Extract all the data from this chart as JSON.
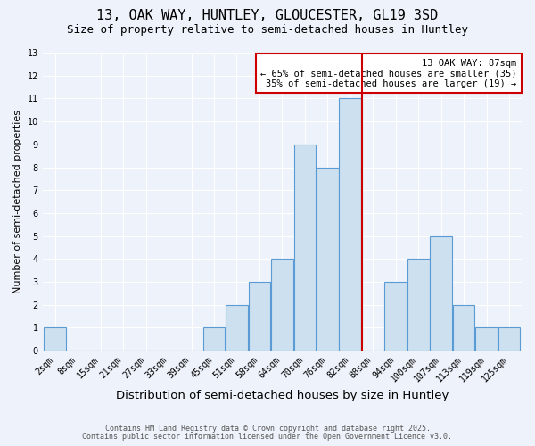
{
  "title": "13, OAK WAY, HUNTLEY, GLOUCESTER, GL19 3SD",
  "subtitle": "Size of property relative to semi-detached houses in Huntley",
  "xlabel": "Distribution of semi-detached houses by size in Huntley",
  "ylabel": "Number of semi-detached properties",
  "bin_labels": [
    "2sqm",
    "8sqm",
    "15sqm",
    "21sqm",
    "27sqm",
    "33sqm",
    "39sqm",
    "45sqm",
    "51sqm",
    "58sqm",
    "64sqm",
    "70sqm",
    "76sqm",
    "82sqm",
    "88sqm",
    "94sqm",
    "100sqm",
    "107sqm",
    "113sqm",
    "119sqm",
    "125sqm"
  ],
  "bar_heights": [
    1,
    0,
    0,
    0,
    0,
    0,
    0,
    1,
    2,
    3,
    4,
    9,
    8,
    11,
    0,
    3,
    4,
    5,
    2,
    1,
    1
  ],
  "bar_color": "#cce0f0",
  "bar_edgecolor": "#5b9bd5",
  "red_line_color": "#cc0000",
  "annotation_title": "13 OAK WAY: 87sqm",
  "annotation_line1": "← 65% of semi-detached houses are smaller (35)",
  "annotation_line2": "35% of semi-detached houses are larger (19) →",
  "annotation_box_color": "#ffffff",
  "annotation_border_color": "#cc0000",
  "ylim": [
    0,
    13
  ],
  "yticks": [
    0,
    1,
    2,
    3,
    4,
    5,
    6,
    7,
    8,
    9,
    10,
    11,
    12,
    13
  ],
  "background_color": "#eef2fa",
  "grid_color": "#ffffff",
  "footer1": "Contains HM Land Registry data © Crown copyright and database right 2025.",
  "footer2": "Contains public sector information licensed under the Open Government Licence v3.0.",
  "title_fontsize": 11,
  "subtitle_fontsize": 9,
  "xlabel_fontsize": 9.5,
  "ylabel_fontsize": 8,
  "tick_fontsize": 7,
  "footer_fontsize": 6,
  "annot_fontsize": 7.5
}
